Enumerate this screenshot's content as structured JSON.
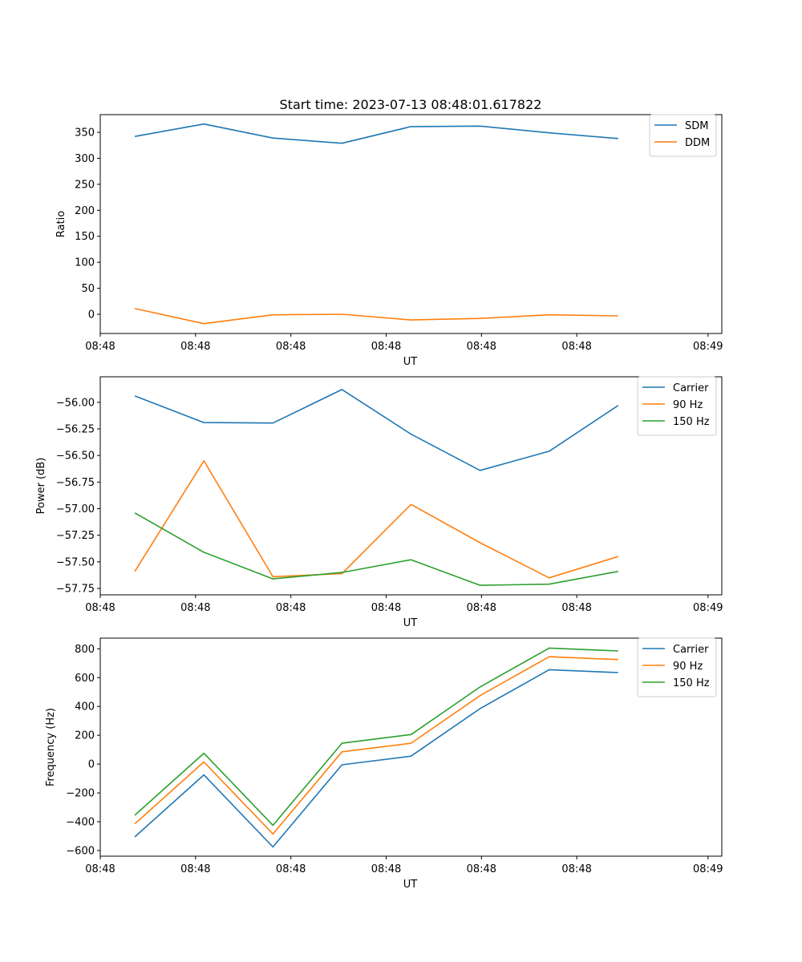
{
  "figure_title": "Start time: 2023-07-13 08:48:01.617822",
  "chart_data": [
    {
      "type": "line",
      "ylabel": "Ratio",
      "xlabel": "UT",
      "ylim": [
        -37,
        384
      ],
      "yticks": [
        0,
        50,
        100,
        150,
        200,
        250,
        300,
        350
      ],
      "xticks": [
        "08:48",
        "08:48",
        "08:48",
        "08:48",
        "08:48",
        "08:48",
        "08:49"
      ],
      "legend_position": "top-right",
      "series": [
        {
          "name": "SDM",
          "color": "#1f77b4",
          "values": [
            342,
            366,
            339,
            329,
            361,
            362,
            349,
            338
          ]
        },
        {
          "name": "DDM",
          "color": "#ff7f0e",
          "values": [
            11,
            -18,
            -1,
            0,
            -11,
            -8,
            -1,
            -3
          ]
        }
      ]
    },
    {
      "type": "line",
      "ylabel": "Power (dB)",
      "xlabel": "UT",
      "ylim": [
        -57.81,
        -55.76
      ],
      "yticks": [
        -56.0,
        -56.25,
        -56.5,
        -56.75,
        -57.0,
        -57.25,
        -57.5,
        -57.75
      ],
      "ytick_labels": [
        "−56.00",
        "−56.25",
        "−56.50",
        "−56.75",
        "−57.00",
        "−57.25",
        "−57.50",
        "−57.75"
      ],
      "xticks": [
        "08:48",
        "08:48",
        "08:48",
        "08:48",
        "08:48",
        "08:48",
        "08:49"
      ],
      "legend_position": "top-right",
      "series": [
        {
          "name": "Carrier",
          "color": "#1f77b4",
          "values": [
            -55.94,
            -56.19,
            -56.195,
            -55.88,
            -56.3,
            -56.64,
            -56.46,
            -56.03
          ]
        },
        {
          "name": "90 Hz",
          "color": "#ff7f0e",
          "values": [
            -57.59,
            -56.55,
            -57.64,
            -57.61,
            -56.96,
            -57.32,
            -57.65,
            -57.45
          ]
        },
        {
          "name": "150 Hz",
          "color": "#2ca02c",
          "values": [
            -57.04,
            -57.41,
            -57.66,
            -57.6,
            -57.48,
            -57.72,
            -57.71,
            -57.59
          ]
        }
      ]
    },
    {
      "type": "line",
      "ylabel": "Frequency (Hz)",
      "xlabel": "UT",
      "ylim": [
        -639,
        874
      ],
      "yticks": [
        800,
        600,
        400,
        200,
        0,
        -200,
        -400,
        -600
      ],
      "ytick_labels": [
        "800",
        "600",
        "400",
        "200",
        "0",
        "−200",
        "−400",
        "−600"
      ],
      "xticks": [
        "08:48",
        "08:48",
        "08:48",
        "08:48",
        "08:48",
        "08:48",
        "08:49"
      ],
      "legend_position": "top-right",
      "series": [
        {
          "name": "Carrier",
          "color": "#1f77b4",
          "values": [
            -505,
            -75,
            -575,
            -5,
            55,
            385,
            655,
            635
          ]
        },
        {
          "name": "90 Hz",
          "color": "#ff7f0e",
          "values": [
            -415,
            15,
            -485,
            85,
            145,
            475,
            745,
            725
          ]
        },
        {
          "name": "150 Hz",
          "color": "#2ca02c",
          "values": [
            -355,
            75,
            -425,
            145,
            205,
            535,
            805,
            785
          ]
        }
      ]
    }
  ]
}
